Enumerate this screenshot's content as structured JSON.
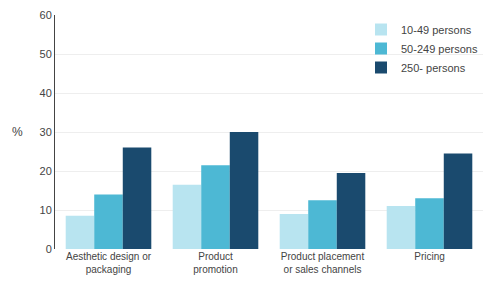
{
  "chart_data": {
    "type": "bar",
    "categories": [
      "Aesthetic design or\npackaging",
      "Product\npromotion",
      "Product placement\nor sales channels",
      "Pricing"
    ],
    "series": [
      {
        "name": "10-49 persons",
        "color": "#b8e4f0",
        "values": [
          8.5,
          16.5,
          9.0,
          11.0
        ]
      },
      {
        "name": "50-249 persons",
        "color": "#4db8d4",
        "values": [
          14.0,
          21.5,
          12.5,
          13.0
        ]
      },
      {
        "name": "250- persons",
        "color": "#1a4a6e",
        "values": [
          26.0,
          30.0,
          19.5,
          24.5
        ]
      }
    ],
    "ylabel": "%",
    "ylim": [
      0,
      60
    ],
    "yticks": [
      0,
      10,
      20,
      30,
      40,
      50,
      60
    ],
    "grid": true,
    "legend": "upper right"
  }
}
